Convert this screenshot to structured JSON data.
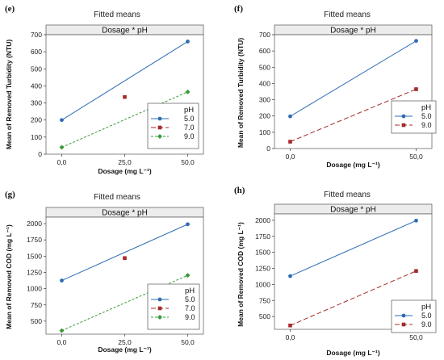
{
  "chart_data": [
    {
      "panel_label": "(e)",
      "type": "line",
      "title": "Fitted means",
      "strip": "Dosage * pH",
      "xlabel": "Dosage (mg L⁻¹)",
      "ylabel": "Mean of Removed Turbidity (NTU)",
      "categories": [
        "0,0",
        "25,0",
        "50,0"
      ],
      "x": [
        0,
        25,
        50
      ],
      "ylim": [
        0,
        700
      ],
      "yticks": [
        "0",
        "100",
        "200",
        "300",
        "400",
        "500",
        "600",
        "700"
      ],
      "legend_title": "pH",
      "legend_position": "bottom-right",
      "series": [
        {
          "name": "5.0",
          "color": "#2e6db4",
          "marker": "circle",
          "dash": "solid",
          "points": [
            [
              0,
              200
            ],
            [
              50,
              660
            ]
          ]
        },
        {
          "name": "7.0",
          "color": "#a42a2a",
          "marker": "square",
          "dash": "long-dash",
          "points": [
            [
              25,
              335
            ]
          ]
        },
        {
          "name": "9.0",
          "color": "#3a9a3a",
          "marker": "diamond",
          "dash": "short-dash",
          "points": [
            [
              0,
              40
            ],
            [
              50,
              365
            ]
          ]
        }
      ]
    },
    {
      "panel_label": "(f)",
      "type": "line",
      "title": "Fitted means",
      "strip": "Dosage * pH",
      "xlabel": "Dosage (mg L⁻¹)",
      "ylabel": "Mean of Removed Turbidity (NTU)",
      "categories": [
        "0,0",
        "50,0"
      ],
      "x": [
        0,
        50
      ],
      "ylim": [
        0,
        700
      ],
      "yticks": [
        "0",
        "100",
        "200",
        "300",
        "400",
        "500",
        "600",
        "700"
      ],
      "legend_title": "pH",
      "legend_position": "bottom-right",
      "series": [
        {
          "name": "5.0",
          "color": "#2e6db4",
          "marker": "circle",
          "dash": "solid",
          "points": [
            [
              0,
              198
            ],
            [
              50,
              662
            ]
          ]
        },
        {
          "name": "9.0",
          "color": "#a42a2a",
          "marker": "square",
          "dash": "long-dash",
          "points": [
            [
              0,
              42
            ],
            [
              50,
              365
            ]
          ]
        }
      ]
    },
    {
      "panel_label": "(g)",
      "type": "line",
      "title": "Fitted means",
      "strip": "Dosage * pH",
      "xlabel": "Dosage (mg L⁻¹)",
      "ylabel": "Mean of Removed COD (mg L⁻¹)",
      "categories": [
        "0,0",
        "25,0",
        "50,0"
      ],
      "x": [
        0,
        25,
        50
      ],
      "ylim": [
        300,
        2100
      ],
      "yticks": [
        "500",
        "750",
        "1000",
        "1250",
        "1500",
        "1750",
        "2000"
      ],
      "legend_title": "pH",
      "legend_position": "bottom-right",
      "series": [
        {
          "name": "5.0",
          "color": "#2e6db4",
          "marker": "circle",
          "dash": "solid",
          "points": [
            [
              0,
              1125
            ],
            [
              50,
              1990
            ]
          ]
        },
        {
          "name": "7.0",
          "color": "#a42a2a",
          "marker": "square",
          "dash": "long-dash",
          "points": [
            [
              25,
              1470
            ]
          ]
        },
        {
          "name": "9.0",
          "color": "#3a9a3a",
          "marker": "diamond",
          "dash": "short-dash",
          "points": [
            [
              0,
              355
            ],
            [
              50,
              1205
            ]
          ]
        }
      ]
    },
    {
      "panel_label": "(h)",
      "type": "line",
      "title": "Fitted means",
      "strip": "Dosage * pH",
      "xlabel": "Dosage (mg L⁻¹)",
      "ylabel": "Mean of Removed COD (mg L⁻¹)",
      "categories": [
        "0,0",
        "50,0"
      ],
      "x": [
        0,
        50
      ],
      "ylim": [
        300,
        2100
      ],
      "yticks": [
        "500",
        "750",
        "1000",
        "1250",
        "1500",
        "1750",
        "2000"
      ],
      "legend_title": "pH",
      "legend_position": "bottom-right",
      "series": [
        {
          "name": "5.0",
          "color": "#2e6db4",
          "marker": "circle",
          "dash": "solid",
          "points": [
            [
              0,
              1130
            ],
            [
              50,
              1995
            ]
          ]
        },
        {
          "name": "9.0",
          "color": "#a42a2a",
          "marker": "square",
          "dash": "long-dash",
          "points": [
            [
              0,
              360
            ],
            [
              50,
              1210
            ]
          ]
        }
      ]
    }
  ]
}
